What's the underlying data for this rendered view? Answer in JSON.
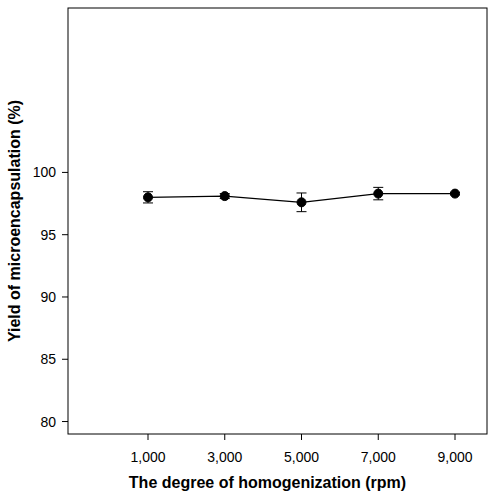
{
  "chart_data": {
    "type": "line",
    "x_label": "The degree of homogenization (rpm)",
    "y_label": "Yield of microencapsulation (%)",
    "categories": [
      "1,000",
      "3,000",
      "5,000",
      "7,000",
      "9,000"
    ],
    "values": [
      98.0,
      98.1,
      97.6,
      98.3,
      98.3
    ],
    "errors": [
      0.45,
      0.2,
      0.75,
      0.5,
      0.1
    ],
    "color": "#000000",
    "marker": "circle",
    "line_style": "solid",
    "ylim": [
      79,
      113.2
    ],
    "yticks": [
      80,
      85,
      90,
      95,
      100
    ],
    "grid": false
  }
}
